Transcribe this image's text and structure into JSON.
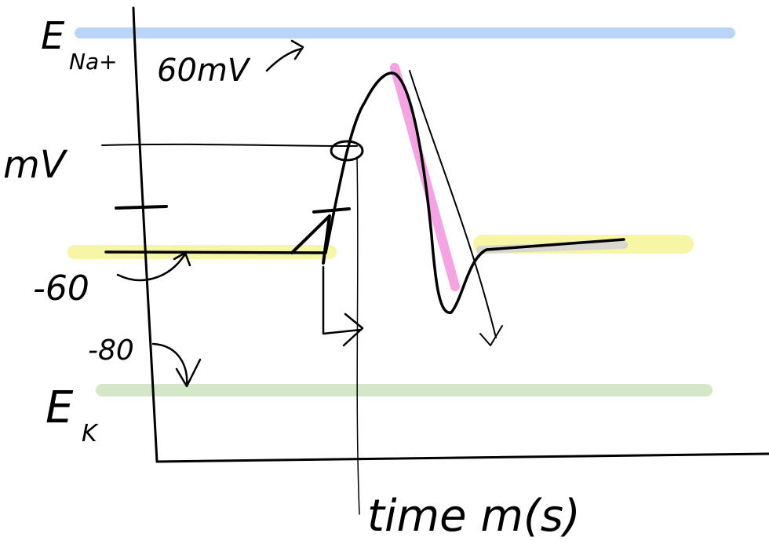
{
  "labels": {
    "e_na": "E",
    "na_sub": "Na+",
    "top_value": "60mV",
    "y_axis": "mV",
    "rest": "-60",
    "lower": "-80",
    "e_k": "E",
    "k_sub": "K",
    "x_axis": "time m(s)"
  }
}
